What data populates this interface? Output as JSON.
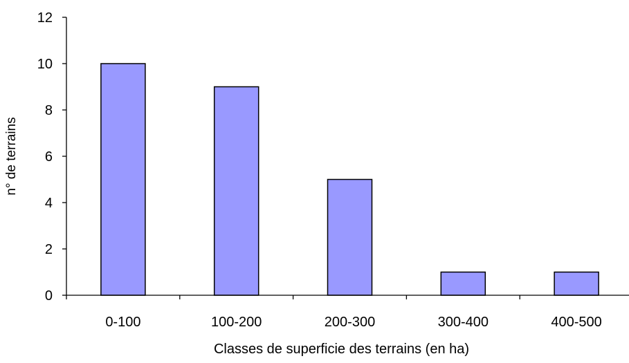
{
  "chart_data": {
    "type": "bar",
    "title": "",
    "xlabel": "Classes de superficie des terrains (en ha)",
    "ylabel": "n° de terrains",
    "categories": [
      "0-100",
      "100-200",
      "200-300",
      "300-400",
      "400-500"
    ],
    "values": [
      10,
      9,
      5,
      1,
      1
    ],
    "ylim": [
      0,
      12
    ],
    "yticks": [
      "0",
      "2",
      "4",
      "6",
      "8",
      "10",
      "12"
    ],
    "grid": false,
    "legend": "none",
    "colors": {
      "bar_fill": "#9999ff",
      "bar_stroke": "#000000",
      "axis": "#000000"
    }
  }
}
